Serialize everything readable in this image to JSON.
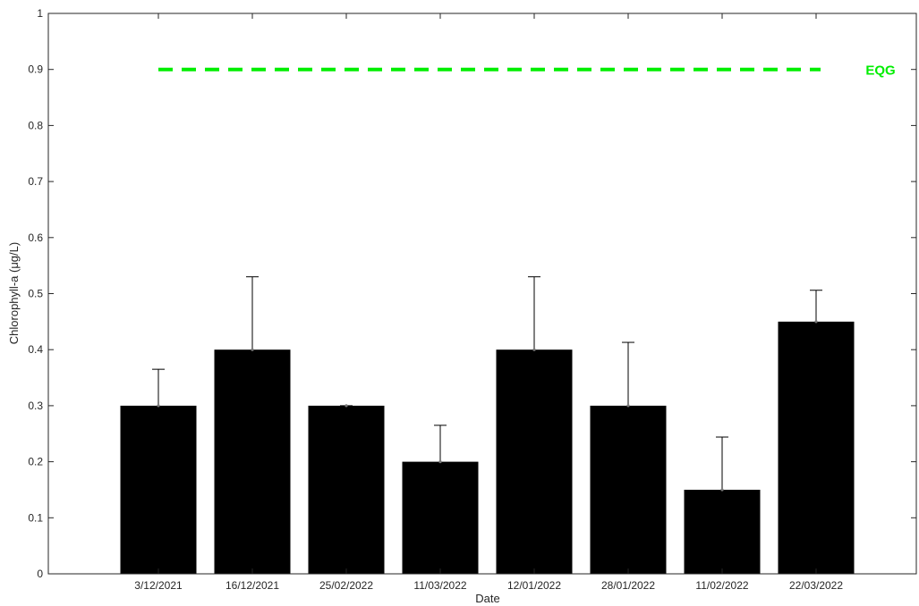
{
  "chart_data": {
    "type": "bar",
    "categories": [
      "3/12/2021",
      "16/12/2021",
      "25/02/2022",
      "11/03/2022",
      "12/01/2022",
      "28/01/2022",
      "11/02/2022",
      "22/03/2022"
    ],
    "series": [
      {
        "values": [
          0.3,
          0.4,
          0.3,
          0.2,
          0.4,
          0.3,
          0.15,
          0.45
        ],
        "error_plus": [
          0.065,
          0.13,
          0.0,
          0.065,
          0.13,
          0.113,
          0.094,
          0.056
        ],
        "color": "#000000"
      }
    ],
    "xlabel": "Date",
    "ylabel": "Chlorophyll-a (μg/L)",
    "ylim": [
      0,
      1
    ],
    "yticks": [
      0,
      0.1,
      0.2,
      0.3,
      0.4,
      0.5,
      0.6,
      0.7,
      0.8,
      0.9,
      1
    ],
    "ytick_labels": [
      "0",
      "0.1",
      "0.2",
      "0.3",
      "0.4",
      "0.5",
      "0.6",
      "0.7",
      "0.8",
      "0.9",
      "1"
    ],
    "reference_line": {
      "label": "EQG",
      "value": 0.9,
      "color": "#00ee00",
      "style": "dashed",
      "x_start_category": "3/12/2021",
      "x_end_category": "22/03/2022"
    },
    "grid": false,
    "box": true
  }
}
